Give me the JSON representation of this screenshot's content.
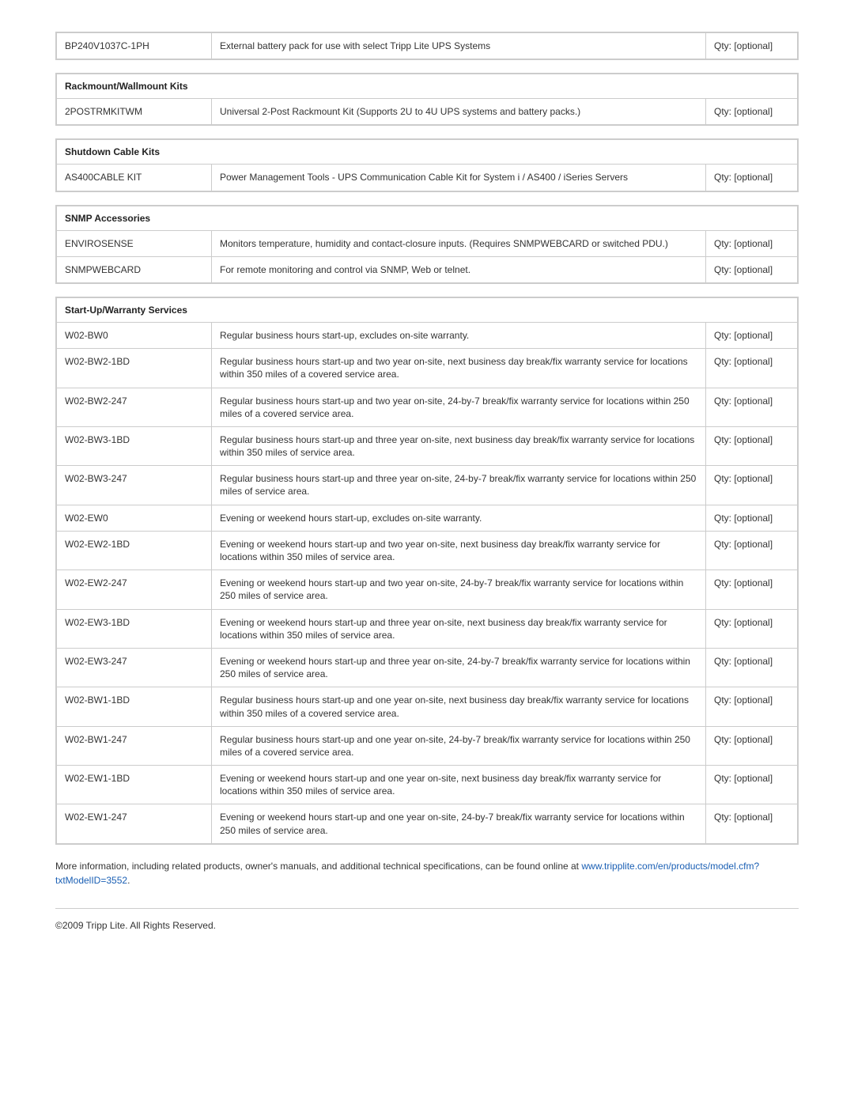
{
  "colors": {
    "border": "#cccccc",
    "text": "#333333",
    "link": "#1a5fb4",
    "background": "#ffffff"
  },
  "typography": {
    "font_family": "Arial, Helvetica, sans-serif",
    "base_size_pt": 9,
    "header_weight": "bold"
  },
  "qty_label": "Qty: [optional]",
  "lone_row": {
    "sku": "BP240V1037C-1PH",
    "desc": "External battery pack for use with select Tripp Lite UPS Systems"
  },
  "sections": [
    {
      "title": "Rackmount/Wallmount Kits",
      "rows": [
        {
          "sku": "2POSTRMKITWM",
          "desc": "Universal 2-Post Rackmount Kit (Supports 2U to 4U UPS systems and battery packs.)"
        }
      ]
    },
    {
      "title": "Shutdown Cable Kits",
      "rows": [
        {
          "sku": "AS400CABLE KIT",
          "desc": "Power Management Tools - UPS Communication Cable Kit for System i / AS400 / iSeries Servers"
        }
      ]
    },
    {
      "title": "SNMP Accessories",
      "rows": [
        {
          "sku": "ENVIROSENSE",
          "desc": "Monitors temperature, humidity and contact-closure inputs. (Requires SNMPWEBCARD or switched PDU.)"
        },
        {
          "sku": "SNMPWEBCARD",
          "desc": "For remote monitoring and control via SNMP, Web or telnet."
        }
      ]
    },
    {
      "title": "Start-Up/Warranty Services",
      "rows": [
        {
          "sku": "W02-BW0",
          "desc": "Regular business hours start-up, excludes on-site warranty."
        },
        {
          "sku": "W02-BW2-1BD",
          "desc": "Regular business hours start-up and two year on-site, next business day break/fix warranty service for locations within 350 miles of a covered service area."
        },
        {
          "sku": "W02-BW2-247",
          "desc": "Regular business hours start-up and two year on-site, 24-by-7 break/fix warranty service for locations within 250 miles of a covered service area."
        },
        {
          "sku": "W02-BW3-1BD",
          "desc": "Regular business hours start-up and three year on-site, next business day break/fix warranty service for locations within 350 miles of service area."
        },
        {
          "sku": "W02-BW3-247",
          "desc": "Regular business hours start-up and three year on-site, 24-by-7 break/fix warranty service for locations within 250 miles of service area."
        },
        {
          "sku": "W02-EW0",
          "desc": "Evening or weekend hours start-up, excludes on-site warranty."
        },
        {
          "sku": "W02-EW2-1BD",
          "desc": "Evening or weekend hours start-up and two year on-site, next business day break/fix warranty service for locations within 350 miles of service area."
        },
        {
          "sku": "W02-EW2-247",
          "desc": "Evening or weekend hours start-up and two year on-site, 24-by-7 break/fix warranty service for locations within 250 miles of service area."
        },
        {
          "sku": "W02-EW3-1BD",
          "desc": "Evening or weekend hours start-up and three year on-site, next business day break/fix warranty service for locations within 350 miles of service area."
        },
        {
          "sku": "W02-EW3-247",
          "desc": "Evening or weekend hours start-up and three year on-site, 24-by-7 break/fix warranty service for locations within 250 miles of service area."
        },
        {
          "sku": "W02-BW1-1BD",
          "desc": "Regular business hours start-up and one year on-site, next business day break/fix warranty service for locations within 350 miles of a covered service area."
        },
        {
          "sku": "W02-BW1-247",
          "desc": "Regular business hours start-up and one year on-site, 24-by-7 break/fix warranty service for locations within 250 miles of a covered service area."
        },
        {
          "sku": "W02-EW1-1BD",
          "desc": "Evening or weekend hours start-up and one year on-site, next business day break/fix warranty service for locations within 350 miles of service area."
        },
        {
          "sku": "W02-EW1-247",
          "desc": "Evening or weekend hours start-up and one year on-site, 24-by-7 break/fix warranty service for locations within 250 miles of service area."
        }
      ]
    }
  ],
  "footer": {
    "intro": "More information, including related products, owner's manuals, and additional technical specifications, can be found online at ",
    "link_text": "www.tripplite.com/en/products/model.cfm?txtModelID=3552",
    "period": ".",
    "copyright": "©2009 Tripp Lite.  All Rights Reserved."
  }
}
